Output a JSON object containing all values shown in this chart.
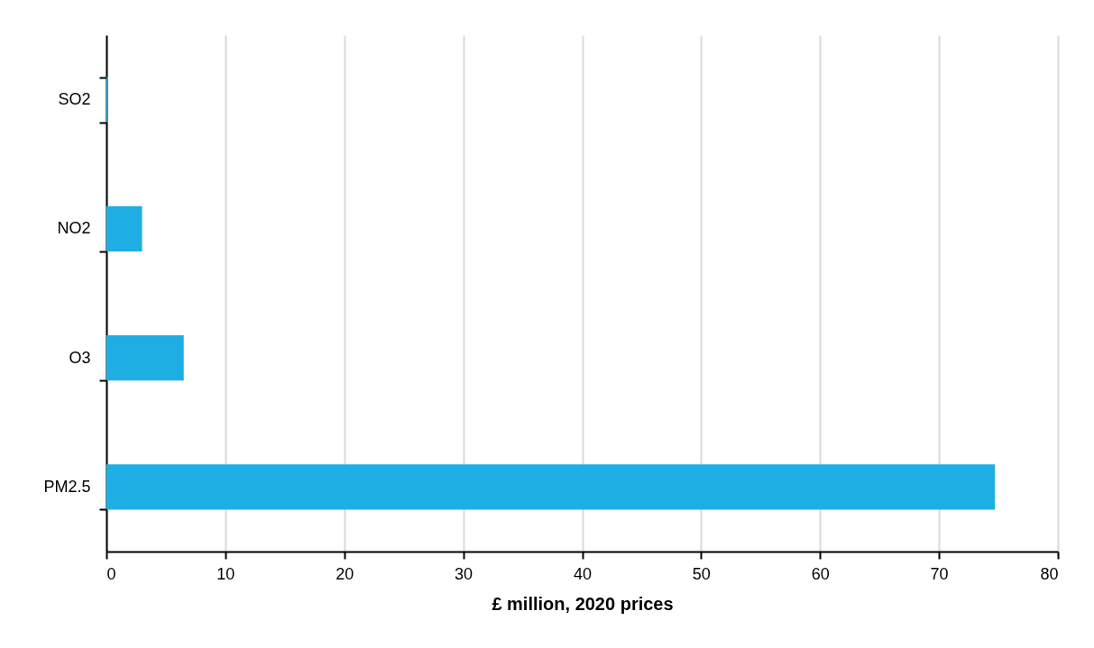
{
  "chart_data": {
    "type": "bar",
    "orientation": "horizontal",
    "xlabel": "£ million, 2020 prices",
    "categories": [
      "SO2",
      "NO2",
      "O3",
      "PM2.5"
    ],
    "series": [
      {
        "color": "#1eaee3",
        "values": [
          0.1,
          3.0,
          6.5,
          74.7
        ]
      }
    ],
    "xlim": [
      0,
      80
    ],
    "xticks": [
      0,
      10,
      20,
      30,
      40,
      50,
      60,
      70,
      80
    ],
    "grid": "x"
  }
}
